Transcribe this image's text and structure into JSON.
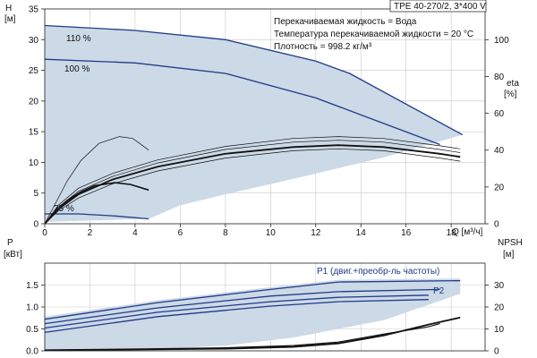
{
  "header": {
    "pump_model": "TPE 40-270/2, 3*400 V"
  },
  "info": {
    "fluid": "Перекачиваемая жидкость = Вода",
    "temperature": "Температура перекачиваемой жидкости = 20 °C",
    "density": "Плотность = 998.2 кг/м³"
  },
  "colors": {
    "area": "#ccd9e6",
    "area_light": "#e8f0f8",
    "curve_blue": "#1f3a8a",
    "curve_black": "#111111",
    "grid": "#c9c9c9"
  },
  "top": {
    "y_label": "H",
    "y_unit": "[м]",
    "y2_label": "eta",
    "y2_unit": "[%]",
    "x_label": "Q [м³/ч]",
    "curve_labels": [
      "110 %",
      "100 %",
      "25 %"
    ]
  },
  "bottom": {
    "y_label": "P",
    "y_unit": "[кВт]",
    "y2_label": "NPSH",
    "y2_unit": "[м]",
    "curve_labels": [
      "P1 (двиг.+преобр-ль частоты)",
      "P2"
    ]
  },
  "chart_data": [
    {
      "type": "line",
      "title": "TPE 40-270/2, 3*400 V",
      "xlabel": "Q [м³/ч]",
      "ylabel": "H [м]",
      "y2label": "eta [%]",
      "xlim": [
        0,
        19.5
      ],
      "ylim": [
        0,
        35
      ],
      "y2lim": [
        0,
        116.7
      ],
      "x_ticks": [
        0,
        2,
        4,
        6,
        8,
        10,
        12,
        14,
        16,
        18
      ],
      "y_ticks": [
        0,
        5,
        10,
        15,
        20,
        25,
        30,
        35
      ],
      "y2_ticks": [
        0,
        20,
        40,
        60,
        80,
        100
      ],
      "grid": true,
      "area": {
        "upper": [
          [
            0,
            32.3
          ],
          [
            4,
            31.5
          ],
          [
            8,
            30
          ],
          [
            12,
            26.5
          ],
          [
            13.5,
            24.5
          ],
          [
            18.5,
            14.5
          ]
        ],
        "lower": [
          [
            18.5,
            14.5
          ],
          [
            15,
            10.8
          ],
          [
            11,
            7.3
          ],
          [
            8,
            4.8
          ],
          [
            6,
            3
          ],
          [
            4.6,
            0.8
          ],
          [
            0,
            0.3
          ]
        ]
      },
      "series": [
        {
          "points": [
            [
              0,
              32.3
            ],
            [
              4,
              31.5
            ],
            [
              8,
              30
            ],
            [
              12,
              26.5
            ],
            [
              13.5,
              24.5
            ],
            [
              18.5,
              14.5
            ]
          ],
          "color": "#1f3a8a",
          "width": 1.3
        },
        {
          "points": [
            [
              0,
              26.8
            ],
            [
              4,
              26.2
            ],
            [
              8,
              24.5
            ],
            [
              12,
              20.5
            ],
            [
              17.5,
              12.9
            ]
          ],
          "color": "#1f3a8a",
          "width": 1.3
        },
        {
          "points": [
            [
              0,
              1.6
            ],
            [
              1.5,
              1.6
            ],
            [
              3,
              1.3
            ],
            [
              4.6,
              0.8
            ]
          ],
          "color": "#1f3a8a",
          "width": 1.3
        },
        {
          "points": [
            [
              0,
              0
            ],
            [
              0.5,
              3.5
            ],
            [
              1,
              7
            ],
            [
              1.6,
              10.3
            ],
            [
              2.4,
              13.1
            ],
            [
              3.3,
              14.2
            ],
            [
              3.9,
              13.9
            ],
            [
              4.6,
              12
            ]
          ],
          "color": "#111",
          "width": 0.7
        },
        {
          "points": [
            [
              0,
              0
            ],
            [
              0.5,
              2
            ],
            [
              1,
              3.8
            ],
            [
              1.6,
              5.2
            ],
            [
              2.2,
              6.2
            ],
            [
              3.1,
              6.7
            ],
            [
              3.8,
              6.4
            ],
            [
              4.6,
              5.5
            ]
          ],
          "color": "#111",
          "width": 1.6
        },
        {
          "points": [
            [
              0,
              0
            ],
            [
              0.6,
              3
            ],
            [
              1.5,
              5.8
            ],
            [
              3,
              8.2
            ],
            [
              5,
              10.4
            ],
            [
              8,
              12.6
            ],
            [
              11,
              13.9
            ],
            [
              13,
              14.2
            ],
            [
              15,
              13.9
            ],
            [
              17.5,
              12.7
            ],
            [
              18.4,
              12.2
            ]
          ],
          "color": "#111",
          "width": 0.7
        },
        {
          "points": [
            [
              0,
              0
            ],
            [
              0.6,
              2.7
            ],
            [
              1.5,
              5.3
            ],
            [
              3,
              7.7
            ],
            [
              5,
              9.9
            ],
            [
              8,
              12.1
            ],
            [
              11,
              13.3
            ],
            [
              13,
              13.6
            ],
            [
              15,
              13.3
            ],
            [
              17.5,
              12.1
            ],
            [
              18.4,
              11.6
            ]
          ],
          "color": "#111",
          "width": 0.7
        },
        {
          "points": [
            [
              0,
              0
            ],
            [
              0.6,
              2.4
            ],
            [
              1.5,
              4.8
            ],
            [
              3,
              7.2
            ],
            [
              5,
              9.3
            ],
            [
              8,
              11.4
            ],
            [
              11,
              12.5
            ],
            [
              13,
              12.8
            ],
            [
              15,
              12.5
            ],
            [
              17.5,
              11.4
            ],
            [
              18.4,
              10.9
            ]
          ],
          "color": "#111",
          "width": 1.8
        },
        {
          "points": [
            [
              0,
              0
            ],
            [
              0.6,
              2.1
            ],
            [
              1.5,
              4.2
            ],
            [
              3,
              6.5
            ],
            [
              5,
              8.6
            ],
            [
              8,
              10.7
            ],
            [
              11,
              11.9
            ],
            [
              13,
              12.2
            ],
            [
              15,
              11.9
            ],
            [
              17.5,
              10.7
            ],
            [
              18.4,
              10.2
            ]
          ],
          "color": "#111",
          "width": 0.7
        }
      ]
    },
    {
      "type": "line",
      "ylabel": "P [кВт]",
      "y2label": "NPSH [м]",
      "xlim": [
        0,
        19.5
      ],
      "ylim": [
        0,
        2.0
      ],
      "y2lim": [
        0,
        40
      ],
      "y_ticks": [
        0,
        0.5,
        1.0,
        1.5
      ],
      "y2_ticks": [
        0,
        10,
        20,
        30
      ],
      "grid": true,
      "area": {
        "upper": [
          [
            0,
            0.78
          ],
          [
            5,
            1.15
          ],
          [
            10,
            1.45
          ],
          [
            13,
            1.62
          ],
          [
            18.4,
            1.65
          ]
        ],
        "lower": [
          [
            18.4,
            1.3
          ],
          [
            15,
            0.7
          ],
          [
            11,
            0.3
          ],
          [
            8,
            0.12
          ],
          [
            4.6,
            0.03
          ],
          [
            0,
            0.02
          ]
        ]
      },
      "series": [
        {
          "name": "P1 (двиг.+преобр-ль частоты)",
          "points": [
            [
              0,
              0.72
            ],
            [
              5,
              1.1
            ],
            [
              10,
              1.4
            ],
            [
              13,
              1.57
            ],
            [
              18.4,
              1.6
            ]
          ],
          "color": "#1f3a8a",
          "width": 1.3
        },
        {
          "points": [
            [
              0,
              0.62
            ],
            [
              5,
              0.98
            ],
            [
              10,
              1.25
            ],
            [
              13,
              1.35
            ],
            [
              17.5,
              1.4
            ]
          ],
          "color": "#1f3a8a",
          "width": 1.3
        },
        {
          "points": [
            [
              0,
              0.52
            ],
            [
              5,
              0.88
            ],
            [
              10,
              1.12
            ],
            [
              13,
              1.22
            ],
            [
              17,
              1.27
            ]
          ],
          "color": "#1f3a8a",
          "width": 1.3
        },
        {
          "name": "P2",
          "points": [
            [
              0,
              0.42
            ],
            [
              5,
              0.78
            ],
            [
              10,
              1.02
            ],
            [
              13,
              1.12
            ],
            [
              17,
              1.17
            ]
          ],
          "color": "#1f3a8a",
          "width": 1.3
        },
        {
          "points": [
            [
              0,
              0.02
            ],
            [
              4,
              0.04
            ],
            [
              8,
              0.07
            ],
            [
              11,
              0.12
            ],
            [
              13,
              0.2
            ],
            [
              15,
              0.38
            ],
            [
              17,
              0.55
            ],
            [
              17.5,
              0.62
            ]
          ],
          "color": "#111",
          "width": 1.2
        },
        {
          "points": [
            [
              0,
              0.01
            ],
            [
              4,
              0.03
            ],
            [
              8,
              0.05
            ],
            [
              11,
              0.09
            ],
            [
              13,
              0.17
            ],
            [
              15,
              0.35
            ],
            [
              17,
              0.6
            ],
            [
              18.4,
              0.76
            ]
          ],
          "color": "#111",
          "width": 1.8
        }
      ]
    }
  ]
}
